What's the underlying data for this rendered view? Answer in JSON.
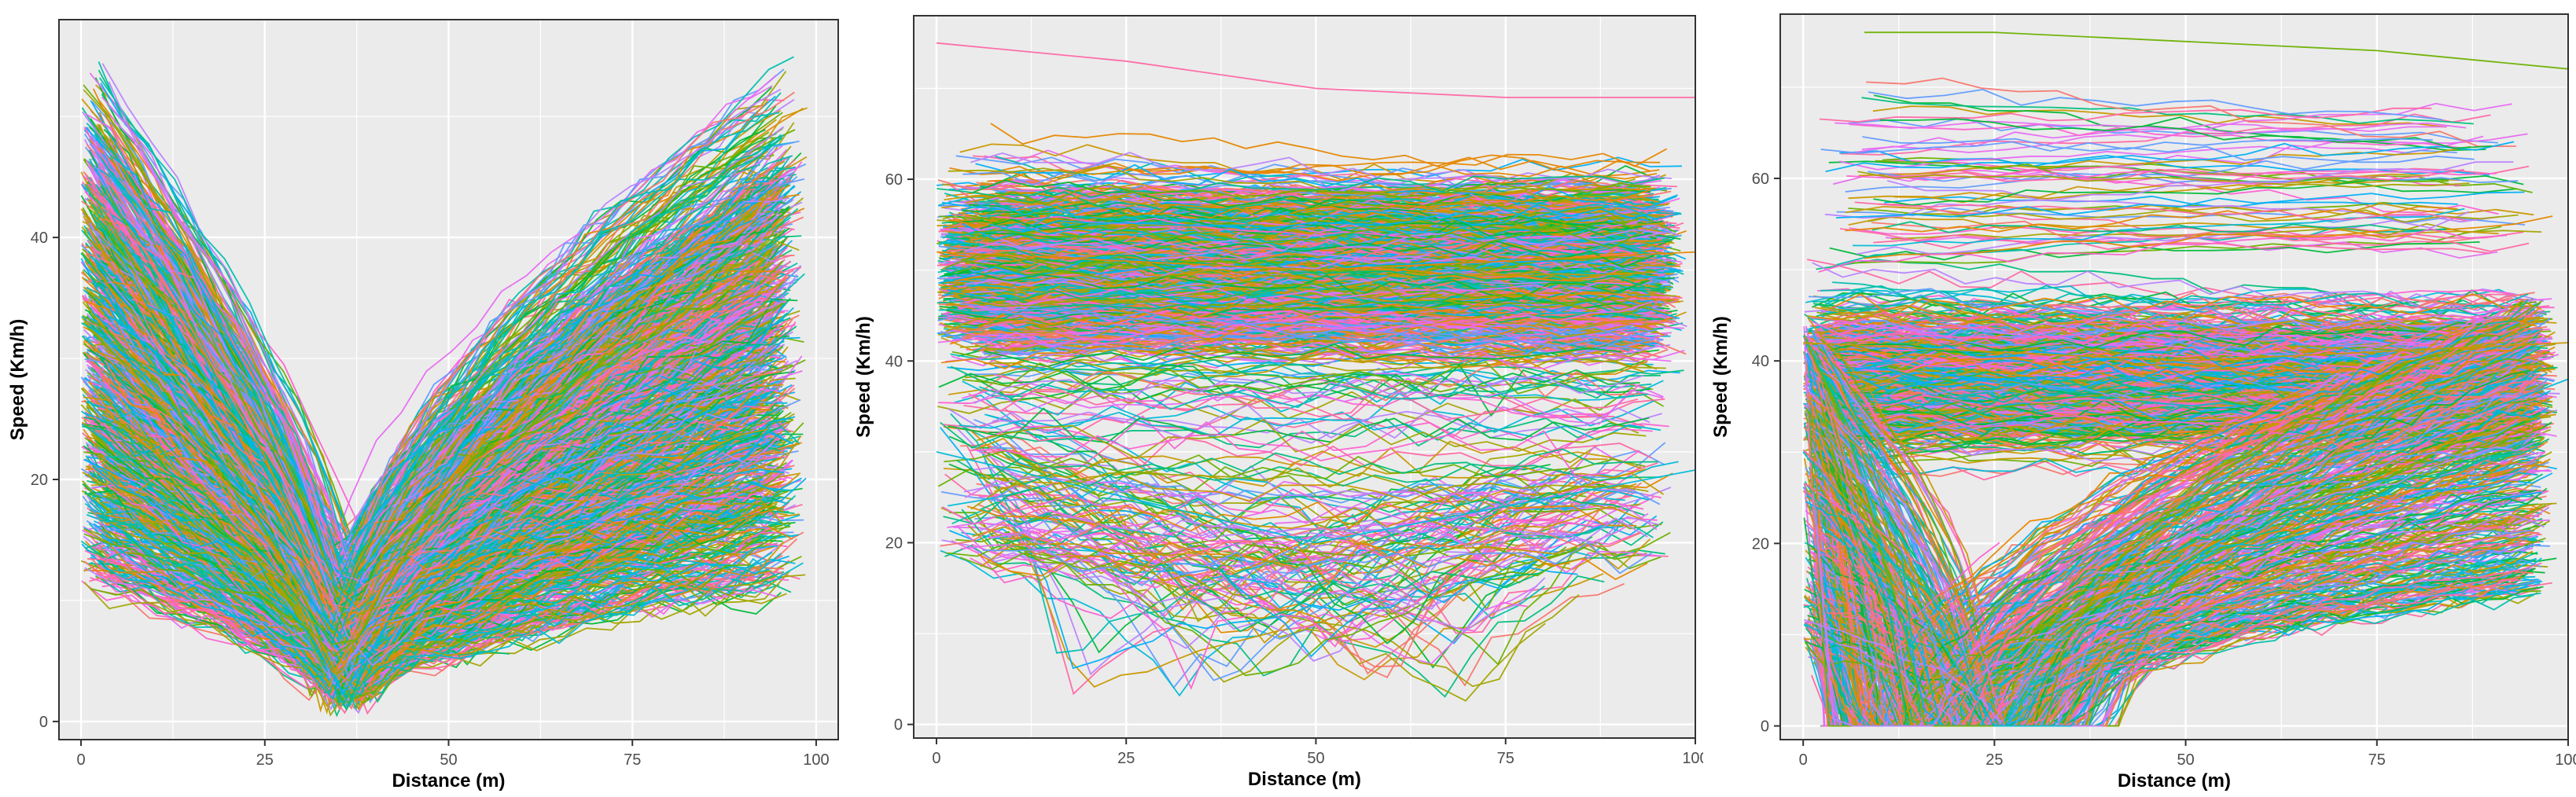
{
  "chart_data": [
    {
      "type": "line",
      "title": "",
      "xlabel": "Distance (m)",
      "ylabel": "Speed (Km/h)",
      "xlim": [
        -3,
        103
      ],
      "ylim": [
        -1.5,
        58
      ],
      "xticks": [
        0,
        25,
        50,
        75,
        100
      ],
      "yticks": [
        0,
        20,
        40
      ],
      "grid": true,
      "legend": "none",
      "series_count_approx": 1500,
      "pattern": "V-shaped deceleration to a minimum near 37 m, then acceleration",
      "sample_series": [
        {
          "x": [
            0,
            10,
            20,
            30,
            37,
            45,
            55,
            70,
            85,
            100
          ],
          "y": [
            45,
            38,
            30,
            18,
            5,
            14,
            25,
            33,
            39,
            44
          ]
        },
        {
          "x": [
            0,
            10,
            20,
            30,
            37,
            45,
            55,
            70,
            85,
            100
          ],
          "y": [
            30,
            26,
            21,
            14,
            6,
            10,
            17,
            23,
            28,
            31
          ]
        },
        {
          "x": [
            0,
            10,
            20,
            30,
            37,
            45,
            55,
            70,
            85,
            100
          ],
          "y": [
            20,
            17,
            14,
            9,
            3,
            8,
            12,
            16,
            19,
            22
          ]
        }
      ]
    },
    {
      "type": "line",
      "title": "",
      "xlabel": "Distance (m)",
      "ylabel": "Speed (Km/h)",
      "xlim": [
        -3,
        100
      ],
      "ylim": [
        -1.5,
        78
      ],
      "xticks": [
        0,
        25,
        50,
        75,
        100
      ],
      "yticks": [
        0,
        20,
        40,
        60
      ],
      "grid": true,
      "legend": "none",
      "series_count_approx": 1500,
      "pattern": "mostly constant-speed trajectories concentrated between 40 and 60 km/h",
      "sample_series": [
        {
          "x": [
            0,
            25,
            50,
            75,
            100
          ],
          "y": [
            75,
            73,
            70,
            69,
            69
          ]
        },
        {
          "x": [
            0,
            25,
            50,
            75,
            100
          ],
          "y": [
            52,
            51,
            50,
            51,
            52
          ]
        },
        {
          "x": [
            0,
            25,
            50,
            75,
            100
          ],
          "y": [
            30,
            25,
            20,
            24,
            28
          ]
        }
      ]
    },
    {
      "type": "line",
      "title": "",
      "xlabel": "Distance (m)",
      "ylabel": "Speed (Km/h)",
      "xlim": [
        -3,
        100
      ],
      "ylim": [
        -1.5,
        78
      ],
      "xticks": [
        0,
        25,
        50,
        75,
        100
      ],
      "yticks": [
        0,
        20,
        40,
        60
      ],
      "grid": true,
      "legend": "none",
      "series_count_approx": 1500,
      "pattern": "constant-speed band around 40 km/h plus stop-and-go trajectories reaching 0 between 10 and 40 m",
      "sample_series": [
        {
          "x": [
            8,
            25,
            50,
            75,
            100
          ],
          "y": [
            76,
            76,
            75,
            74,
            72
          ]
        },
        {
          "x": [
            0,
            25,
            50,
            75,
            100
          ],
          "y": [
            42,
            41,
            40,
            41,
            42
          ]
        },
        {
          "x": [
            0,
            10,
            25,
            35,
            50,
            75,
            100
          ],
          "y": [
            30,
            20,
            0,
            0,
            18,
            30,
            38
          ]
        }
      ]
    }
  ]
}
